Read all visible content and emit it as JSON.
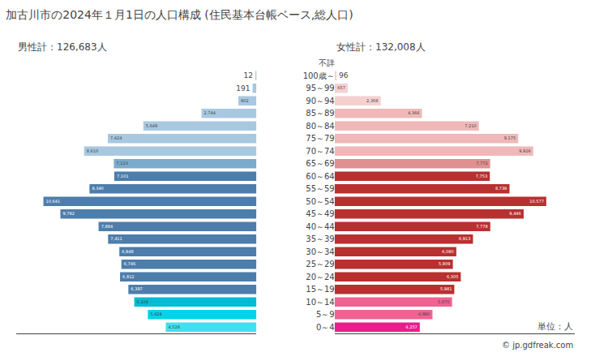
{
  "chart_data": {
    "type": "bar",
    "orientation": "horizontal",
    "title": "加古川市の2024年１月1日の人口構成 (住民基本台帳ベース,総人口)",
    "categories": [
      "不詳",
      "100歳～",
      "95～99",
      "90～94",
      "85～89",
      "80～84",
      "75～79",
      "70～74",
      "65～69",
      "60～64",
      "55～59",
      "50～54",
      "45～49",
      "40～44",
      "35～39",
      "30～34",
      "25～29",
      "20～24",
      "15～19",
      "10～14",
      "5～9",
      "0～4"
    ],
    "series": [
      {
        "values": [
          0,
          12,
          191,
          902,
          2744,
          5649,
          7424,
          8610,
          7123,
          7101,
          8340,
          10641,
          9792,
          7884,
          7411,
          6848,
          6746,
          6812,
          6397,
          6104,
          5424,
          4528
        ],
        "value_labels": [
          "0",
          "12",
          "191",
          "902",
          "2,744",
          "5,649",
          "7,424",
          "8,610",
          "7,123",
          "7,101",
          "8,340",
          "10,641",
          "9,792",
          "7,884",
          "7,411",
          "6,848",
          "6,746",
          "6,812",
          "6,397",
          "6,104",
          "5,424",
          "4,528"
        ],
        "colors": [
          "#a8c8e0",
          "#a8c8e0",
          "#a8c8e0",
          "#a8c8e0",
          "#a8c8e0",
          "#a8c8e0",
          "#a8c8e0",
          "#a8c8e0",
          "#7aabcc",
          "#4d7dab",
          "#4d7dab",
          "#4d7dab",
          "#4d7dab",
          "#4d7dab",
          "#4d7dab",
          "#4d7dab",
          "#4d7dab",
          "#4d7dab",
          "#4d7dab",
          "#00bcd4",
          "#00d4e8",
          "#40e0f0"
        ]
      },
      {
        "values": [
          0,
          96,
          657,
          2308,
          4366,
          7210,
          9175,
          9926,
          7772,
          7753,
          8739,
          10577,
          9446,
          7778,
          6913,
          6080,
          5909,
          6305,
          5981,
          5870,
          4890,
          4257
        ],
        "value_labels": [
          "0",
          "96",
          "657",
          "2,308",
          "4,366",
          "7,210",
          "9,175",
          "9,926",
          "7,772",
          "7,753",
          "8,739",
          "10,577",
          "9,446",
          "7,778",
          "6,913",
          "6,080",
          "5,909",
          "6,305",
          "5,981",
          "5,870",
          "4,890",
          "4,257"
        ],
        "colors": [
          "#f5d0d0",
          "#f5d0d0",
          "#f5d0d0",
          "#f5d0d0",
          "#f0b8b8",
          "#f0b8b8",
          "#f0b8b8",
          "#f0b8b8",
          "#e09090",
          "#b83030",
          "#b83030",
          "#b83030",
          "#b83030",
          "#b83030",
          "#b83030",
          "#b83030",
          "#b83030",
          "#b83030",
          "#b83030",
          "#f06292",
          "#f06292",
          "#e91e8c"
        ]
      }
    ],
    "annotations": [
      "男性計：126,683人",
      "女性計：132,008人",
      "単位：人",
      "© jp.gdfreak.com"
    ],
    "xlim": [
      0,
      12000
    ],
    "data_labels": true,
    "tick_labels": "y",
    "grid": false
  }
}
